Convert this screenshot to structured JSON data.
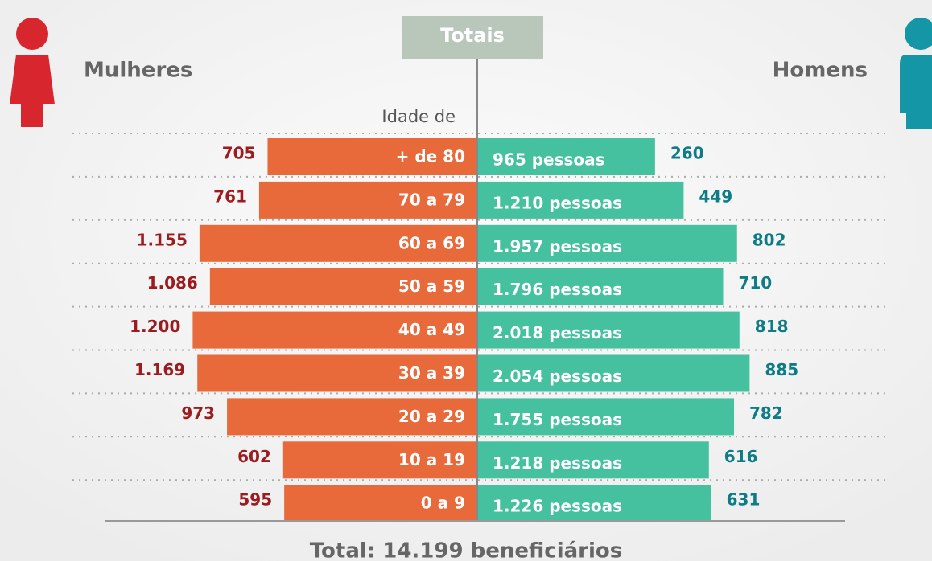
{
  "chart_data": {
    "type": "pyramid",
    "title": "Totais",
    "axis_label": "Idade de",
    "categories": [
      "+ de 80",
      "70 a 79",
      "60 a 69",
      "50 a 59",
      "40 a 49",
      "30 a 39",
      "20 a 29",
      "10 a 19",
      "0 a 9"
    ],
    "series": [
      {
        "name": "Mulheres",
        "color": "#e8693a",
        "label_color": "#9b1b1f",
        "values": [
          705,
          761,
          1155,
          1086,
          1200,
          1169,
          973,
          602,
          595
        ],
        "value_labels": [
          "705",
          "761",
          "1.155",
          "1.086",
          "1.200",
          "1.169",
          "973",
          "602",
          "595"
        ]
      },
      {
        "name": "Homens",
        "color": "#45c1a0",
        "label_color": "#0e7c86",
        "values": [
          260,
          449,
          802,
          710,
          818,
          885,
          782,
          616,
          631
        ]
      }
    ],
    "totals": [
      965,
      1210,
      1957,
      1796,
      2018,
      2054,
      1755,
      1218,
      1226
    ],
    "totals_labels": [
      "965 pessoas",
      "1.210 pessoas",
      "1.957 pessoas",
      "1.796 pessoas",
      "2.018 pessoas",
      "2.054 pessoas",
      "1.755 pessoas",
      "1.218 pessoas",
      "1.226 pessoas"
    ],
    "footer": "Total: 14.199 beneficiários"
  }
}
